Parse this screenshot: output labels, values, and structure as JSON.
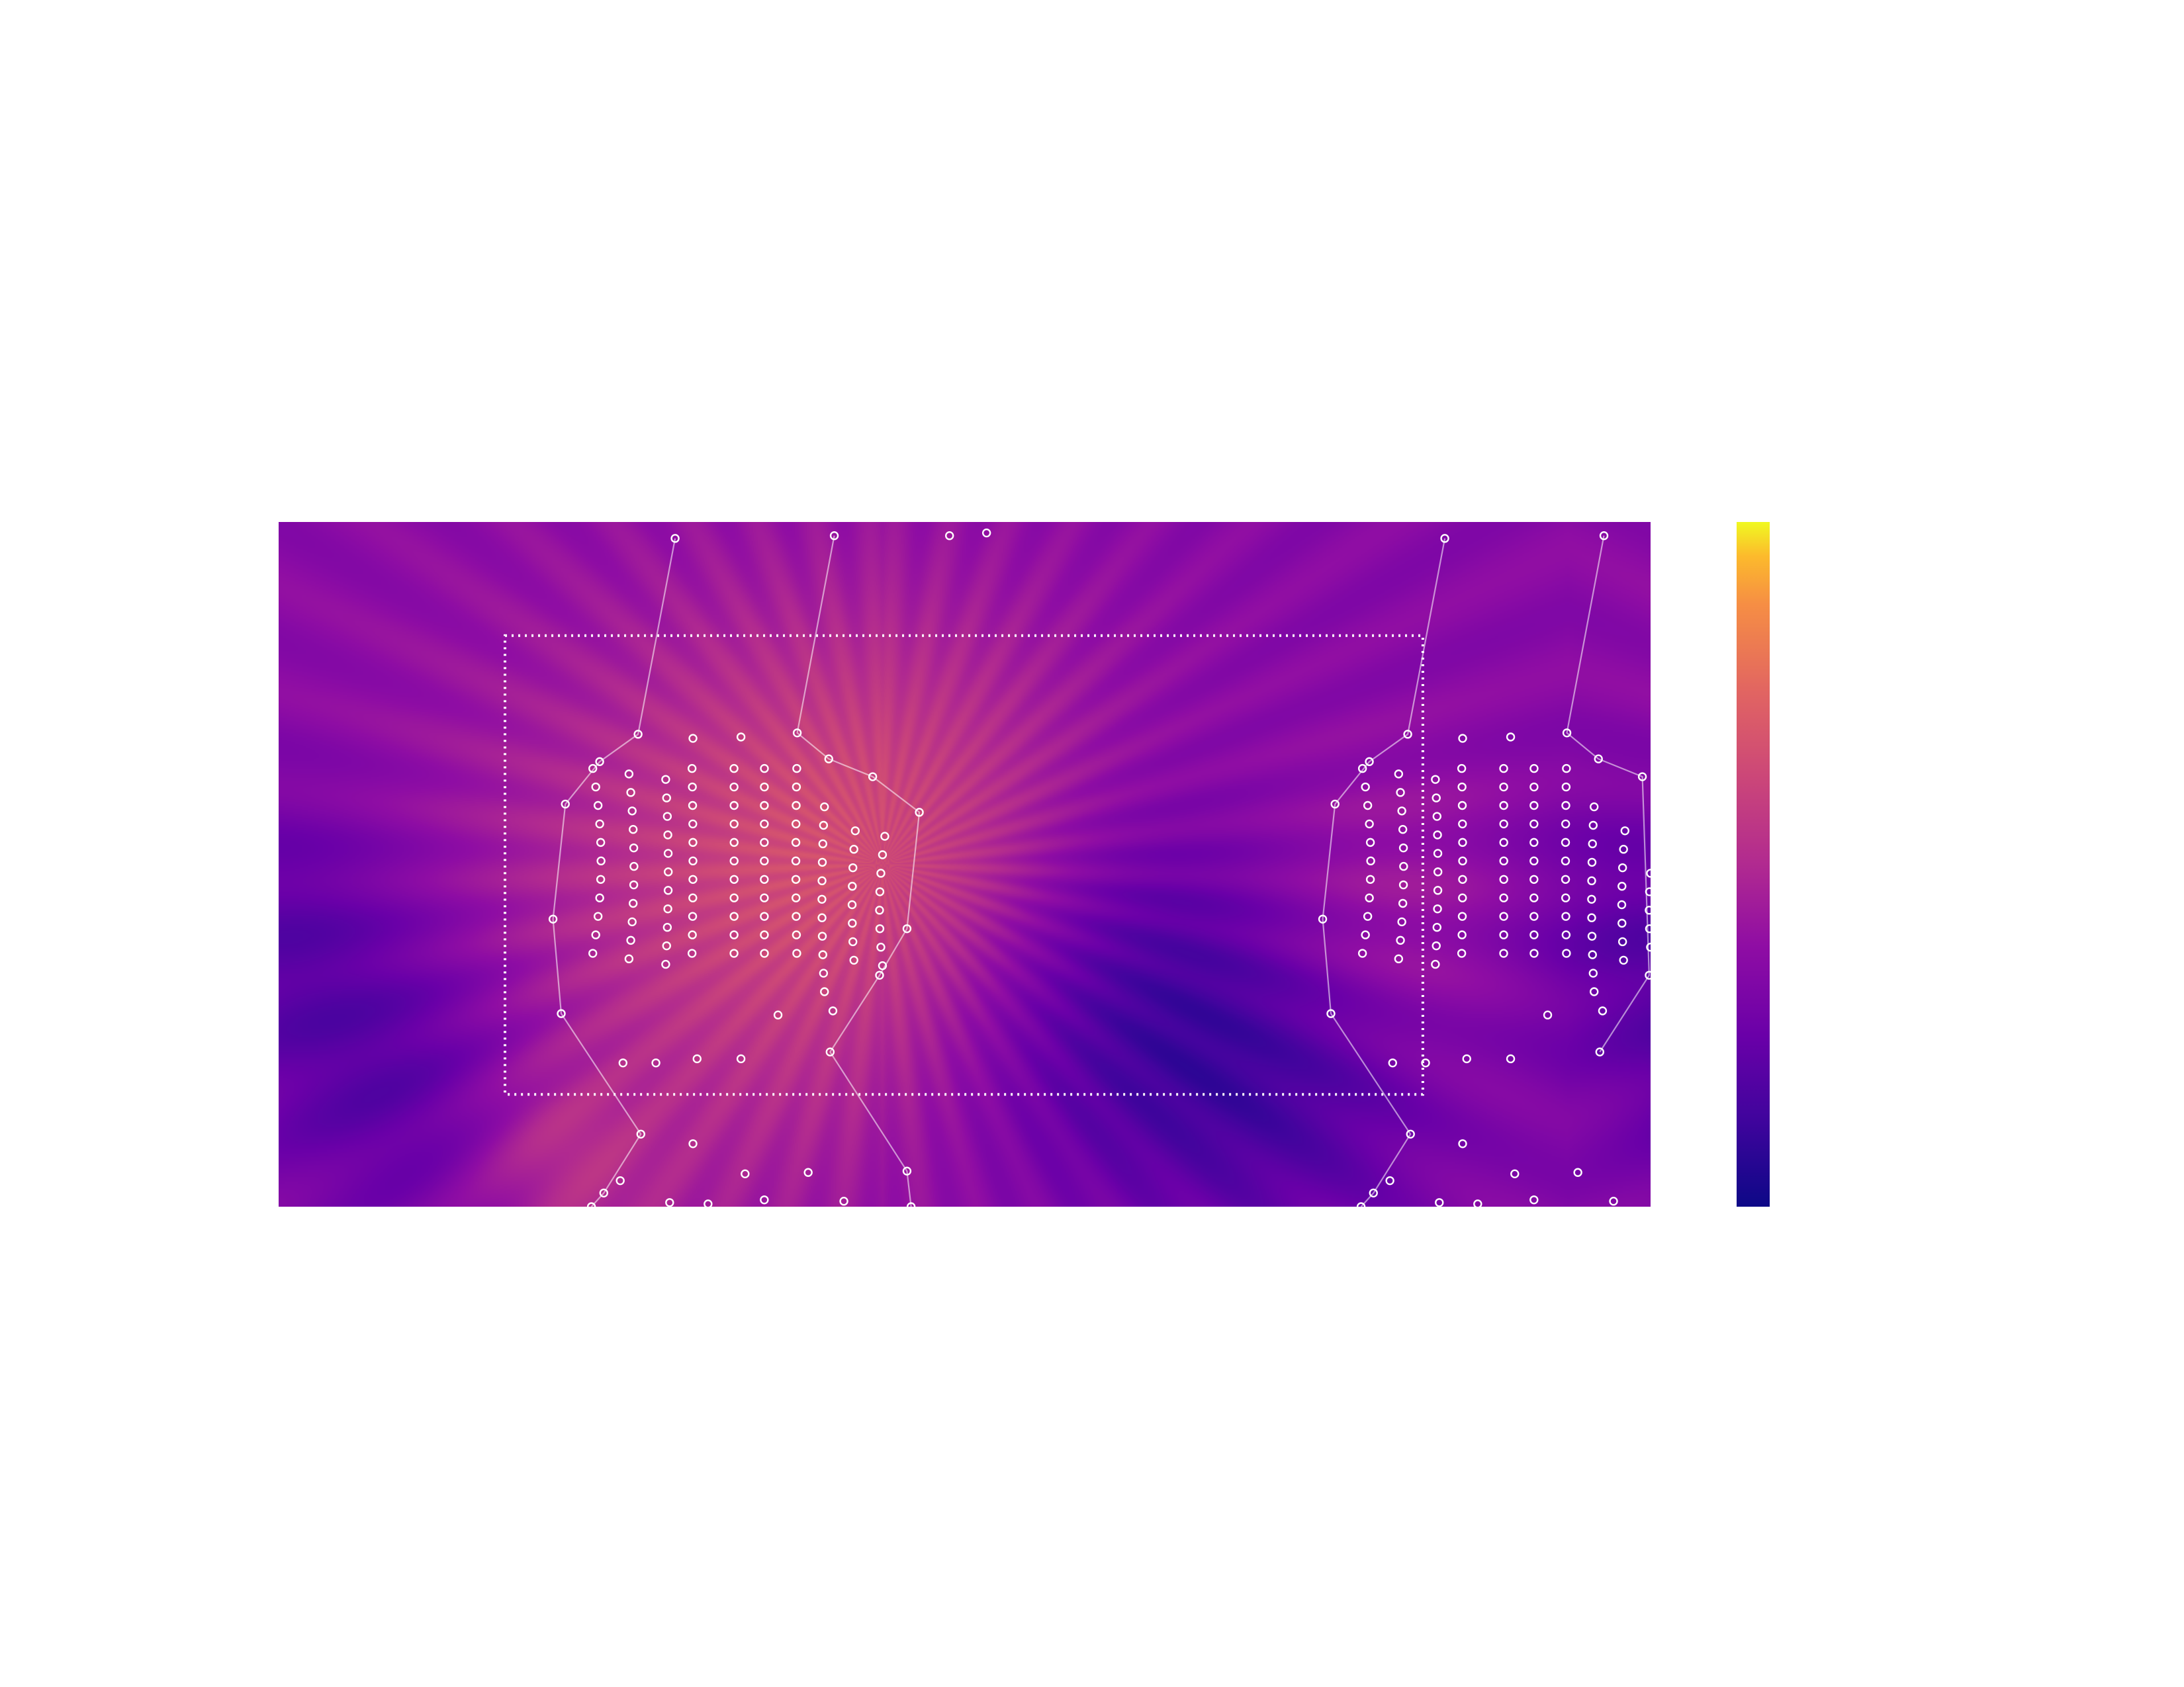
{
  "chart_data": {
    "type": "heatmap",
    "title": "",
    "xlabel": "",
    "ylabel": "",
    "colormap": "plasma",
    "colorbar": {
      "orientation": "vertical",
      "placement": "right",
      "tick_labels": []
    },
    "axes_visible": false,
    "grid": false,
    "colors": {
      "scale_low": "#0d0887",
      "scale_mid": "#9c179e",
      "scale_high": "#f0f921",
      "marker": "#ffffff",
      "outline": "#ffffff",
      "boundary_box": "#ffffff"
    },
    "periodic_x": true,
    "cell_width": 1.0,
    "cell_height": 0.5,
    "field": {
      "baseline": 0.35,
      "peaks": [
        {
          "x": 0.44,
          "y": 0.24,
          "amplitude": 0.22,
          "sigma": 0.12
        },
        {
          "x": 0.3,
          "y": 0.3,
          "amplitude": 0.14,
          "sigma": 0.18
        },
        {
          "x": 0.2,
          "y": 0.45,
          "amplitude": 0.06,
          "sigma": 0.04
        },
        {
          "x": 0.8,
          "y": 0.3,
          "amplitude": 0.12,
          "sigma": 0.08
        },
        {
          "x": 0.2,
          "y": 0.48,
          "amplitude": 0.1,
          "sigma": 0.06
        }
      ],
      "troughs": [
        {
          "x": 0.62,
          "y": 0.35,
          "amplitude": 0.26,
          "sigma": 0.1
        },
        {
          "x": 0.1,
          "y": 0.42,
          "amplitude": 0.18,
          "sigma": 0.08
        },
        {
          "x": 0.75,
          "y": 0.42,
          "amplitude": 0.14,
          "sigma": 0.08
        },
        {
          "x": 0.0,
          "y": 0.3,
          "amplitude": 0.16,
          "sigma": 0.08
        }
      ]
    },
    "boundary_box": {
      "x": [
        0.165,
        0.834
      ],
      "y": [
        0.083,
        0.418
      ]
    },
    "outline_vertices": [
      [
        0.289,
        0.012
      ],
      [
        0.262,
        0.155
      ],
      [
        0.234,
        0.175
      ],
      [
        0.209,
        0.206
      ],
      [
        0.2,
        0.29
      ],
      [
        0.206,
        0.359
      ],
      [
        0.264,
        0.447
      ],
      [
        0.237,
        0.49
      ],
      [
        0.228,
        0.5
      ]
    ],
    "outline_vertices_2": [
      [
        0.405,
        0.01
      ],
      [
        0.378,
        0.154
      ],
      [
        0.401,
        0.173
      ],
      [
        0.433,
        0.186
      ],
      [
        0.467,
        0.212
      ],
      [
        0.458,
        0.297
      ],
      [
        0.438,
        0.331
      ],
      [
        0.402,
        0.387
      ],
      [
        0.458,
        0.474
      ],
      [
        0.461,
        0.5
      ]
    ],
    "scatter": {
      "columns_x": [
        0.235,
        0.259,
        0.284,
        0.302,
        0.332,
        0.354,
        0.377,
        0.396,
        0.418,
        0.438
      ],
      "row_count": 11,
      "y_start": 0.18,
      "y_step": 0.0135,
      "extra_points": [
        [
          0.302,
          0.158
        ],
        [
          0.337,
          0.157
        ],
        [
          0.489,
          0.01
        ],
        [
          0.516,
          0.008
        ],
        [
          0.251,
          0.395
        ],
        [
          0.275,
          0.395
        ],
        [
          0.337,
          0.392
        ],
        [
          0.364,
          0.36
        ],
        [
          0.404,
          0.357
        ],
        [
          0.302,
          0.454
        ],
        [
          0.34,
          0.476
        ],
        [
          0.386,
          0.475
        ],
        [
          0.249,
          0.481
        ],
        [
          0.285,
          0.497
        ],
        [
          0.313,
          0.498
        ],
        [
          0.354,
          0.495
        ],
        [
          0.412,
          0.496
        ],
        [
          0.305,
          0.392
        ]
      ]
    }
  }
}
